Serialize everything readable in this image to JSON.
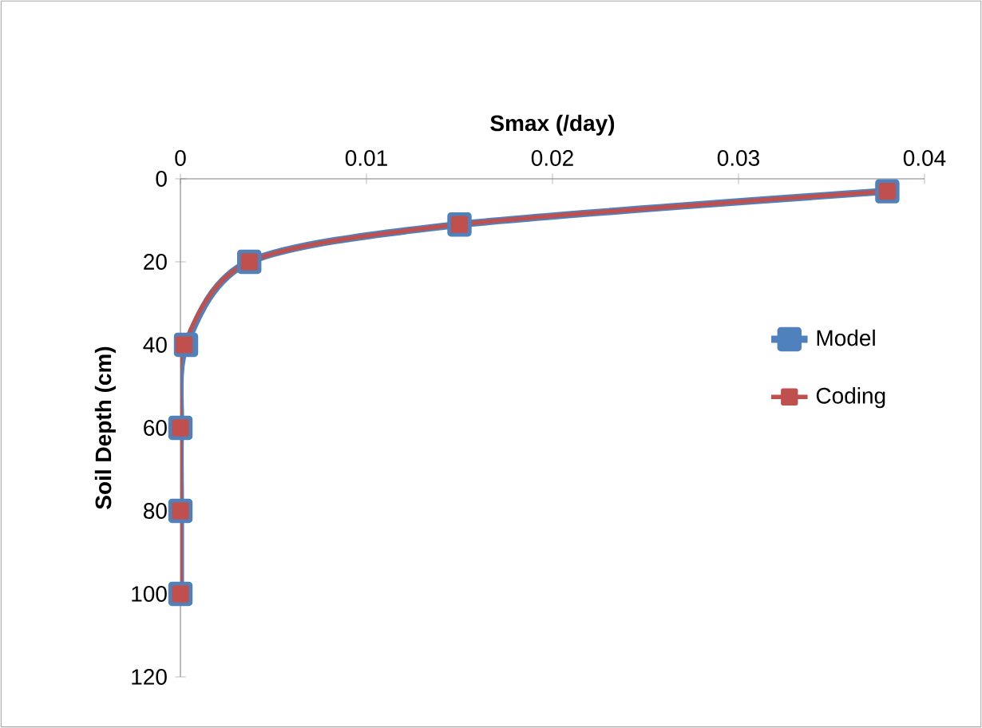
{
  "chart_data": {
    "type": "line",
    "xlabel": "Smax (/day)",
    "ylabel": "Soil Depth (cm)",
    "xlim": [
      0,
      0.04
    ],
    "xticks": [
      0,
      0.01,
      0.02,
      0.03,
      0.04
    ],
    "ylim": [
      120,
      0
    ],
    "yticks": [
      0,
      20,
      40,
      60,
      80,
      100,
      120
    ],
    "grid": false,
    "legend": "right",
    "marker": "square",
    "line_style": "solid",
    "series": [
      {
        "name": "Model",
        "color": "#4f81bd",
        "x": [
          0.038,
          0.015,
          0.0037,
          0.0003,
          0,
          0,
          0
        ],
        "values": [
          3,
          11,
          20,
          40,
          60,
          80,
          100
        ]
      },
      {
        "name": "Coding",
        "color": "#c0504d",
        "x": [
          0.038,
          0.015,
          0.0037,
          0.0002,
          0,
          0,
          0
        ],
        "values": [
          3,
          11,
          20,
          40,
          60,
          80,
          100
        ]
      }
    ]
  }
}
